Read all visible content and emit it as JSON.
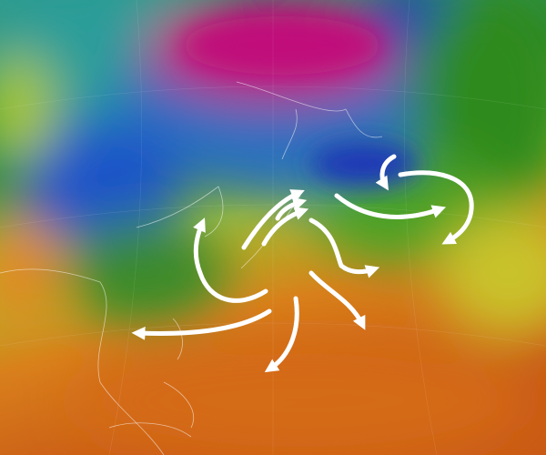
{
  "map": {
    "type": "wind-temperature-globe",
    "colors": {
      "cold": "#c2187a",
      "cool": "#1e40b8",
      "teal": "#2aa6a0",
      "mild": "#2f8a1e",
      "warm": "#b8d02a",
      "hot": "#d96a1a",
      "arrow": "#ffffff",
      "coastline": "#ffffff"
    },
    "annotations": {
      "arrow_count": 11,
      "icon": "flow-arrow-icon"
    }
  }
}
